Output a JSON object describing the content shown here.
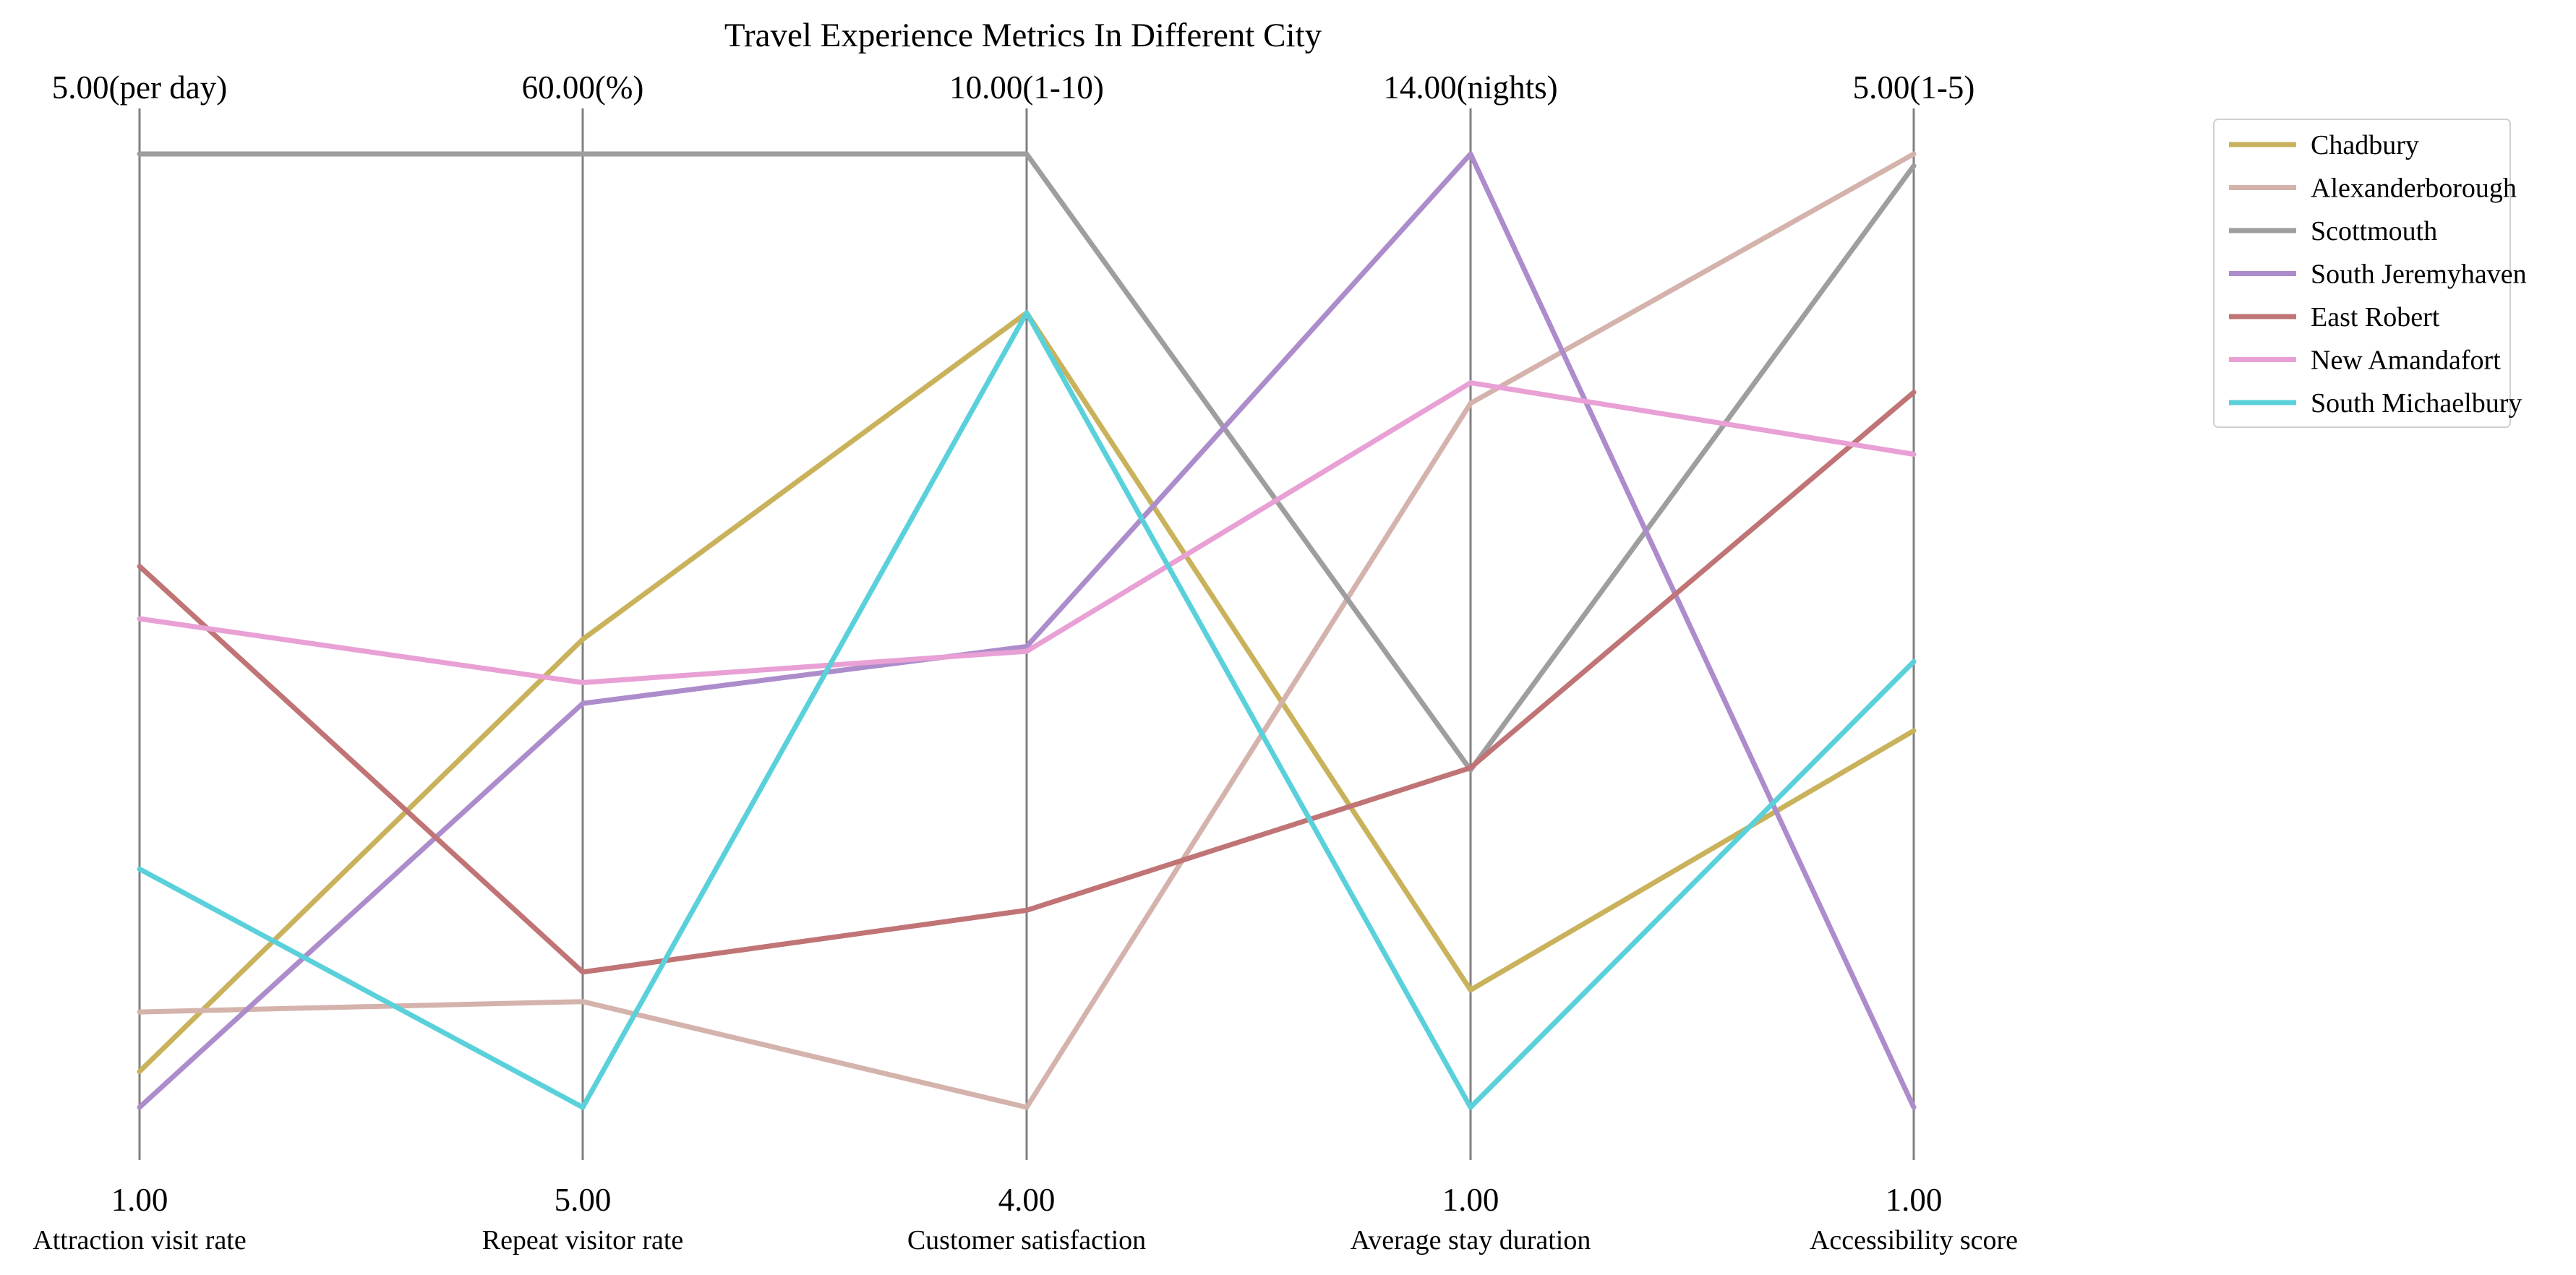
{
  "chart_data": {
    "type": "parallel-coordinates",
    "title": "Travel Experience Metrics In Different City",
    "axes": [
      {
        "label": "Attraction visit rate",
        "min_label": "1.00",
        "max_label": "5.00(per day)",
        "min": 1,
        "max": 5
      },
      {
        "label": "Repeat visitor rate",
        "min_label": "5.00",
        "max_label": "60.00(%)",
        "min": 5,
        "max": 60
      },
      {
        "label": "Customer satisfaction",
        "min_label": "4.00",
        "max_label": "10.00(1-10)",
        "min": 4,
        "max": 10
      },
      {
        "label": "Average stay duration",
        "min_label": "1.00",
        "max_label": "14.00(nights)",
        "min": 1,
        "max": 14
      },
      {
        "label": "Accessibility score",
        "min_label": "1.00",
        "max_label": "5.00(1-5)",
        "min": 1,
        "max": 5
      }
    ],
    "series": [
      {
        "name": "Chadbury",
        "color": "#c9b25b",
        "values": [
          1.15,
          32.0,
          9.0,
          2.6,
          2.58
        ]
      },
      {
        "name": "Alexanderborough",
        "color": "#d4b3ac",
        "values": [
          1.4,
          11.1,
          4.0,
          10.6,
          5.0
        ]
      },
      {
        "name": "Scottmouth",
        "color": "#9e9e9e",
        "values": [
          5.0,
          60.0,
          10.0,
          5.6,
          4.95
        ]
      },
      {
        "name": "South Jeremyhaven",
        "color": "#ad8ccb",
        "values": [
          1.0,
          28.3,
          6.9,
          14.0,
          1.0
        ]
      },
      {
        "name": "East Robert",
        "color": "#c07475",
        "values": [
          3.27,
          12.8,
          5.24,
          5.63,
          4.0
        ]
      },
      {
        "name": "New Amandafort",
        "color": "#e8a0d5",
        "values": [
          3.05,
          29.5,
          6.87,
          10.88,
          3.74
        ]
      },
      {
        "name": "South Michaelbury",
        "color": "#5ad1da",
        "values": [
          2.0,
          5.0,
          9.0,
          1.0,
          2.87
        ]
      }
    ],
    "legend_position": "top-right",
    "grid": false
  }
}
